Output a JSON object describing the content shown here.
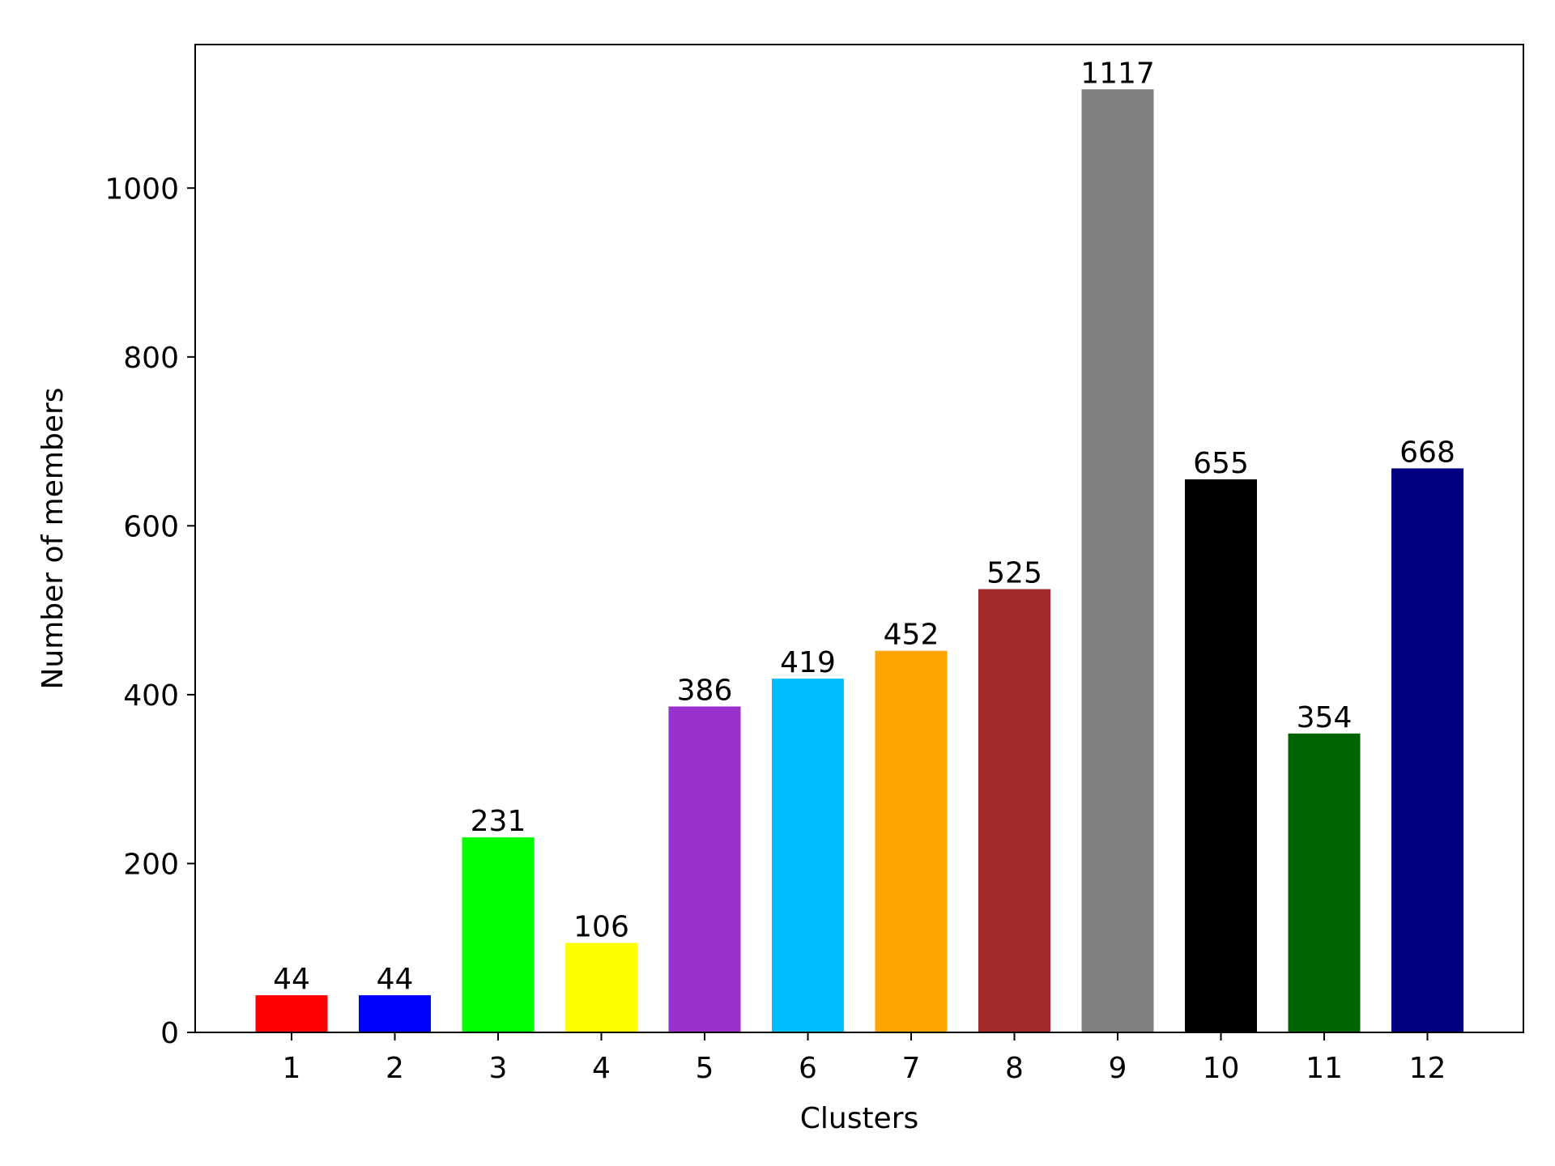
{
  "chart_data": {
    "type": "bar",
    "title": "",
    "xlabel": "Clusters",
    "ylabel": "Number of members",
    "categories": [
      "1",
      "2",
      "3",
      "4",
      "5",
      "6",
      "7",
      "8",
      "9",
      "10",
      "11",
      "12"
    ],
    "values": [
      44,
      44,
      231,
      106,
      386,
      419,
      452,
      525,
      1117,
      655,
      354,
      668
    ],
    "data_labels": [
      "44",
      "44",
      "231",
      "106",
      "386",
      "419",
      "452",
      "525",
      "1117",
      "655",
      "354",
      "668"
    ],
    "colors": [
      "#ff0000",
      "#0000ff",
      "#00ff00",
      "#ffff00",
      "#9932cc",
      "#00bfff",
      "#ffa500",
      "#a52a2a",
      "#808080",
      "#000000",
      "#006400",
      "#000080"
    ],
    "ylim": [
      0,
      1170
    ],
    "yticks": [
      0,
      200,
      400,
      600,
      800,
      1000
    ],
    "ytick_labels": [
      "0",
      "200",
      "400",
      "600",
      "800",
      "1000"
    ],
    "grid": false,
    "legend": "none"
  }
}
